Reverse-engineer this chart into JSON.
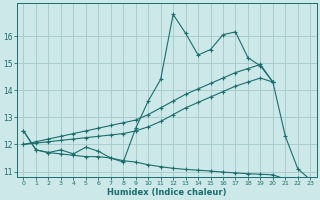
{
  "xlabel": "Humidex (Indice chaleur)",
  "bg_color": "#cce8e8",
  "grid_color": "#aacccc",
  "line_color": "#1a6e6e",
  "x": [
    0,
    1,
    2,
    3,
    4,
    5,
    6,
    7,
    8,
    9,
    10,
    11,
    12,
    13,
    14,
    15,
    16,
    17,
    18,
    19,
    20,
    21,
    22,
    23
  ],
  "y_top": [
    12.5,
    11.8,
    11.7,
    11.8,
    11.65,
    11.9,
    11.75,
    11.5,
    11.35,
    12.6,
    13.6,
    14.4,
    16.8,
    16.1,
    15.3,
    15.5,
    16.05,
    16.15,
    15.2,
    14.9,
    14.3,
    12.3,
    11.1,
    10.7
  ],
  "y_line1": [
    12.0,
    12.05,
    12.1,
    12.15,
    12.2,
    12.25,
    12.3,
    12.35,
    12.4,
    12.5,
    12.65,
    12.85,
    13.1,
    13.35,
    13.55,
    13.75,
    13.95,
    14.15,
    14.3,
    14.45,
    14.3,
    null,
    null,
    null
  ],
  "y_line2": [
    12.0,
    12.1,
    12.2,
    12.3,
    12.4,
    12.5,
    12.6,
    12.7,
    12.8,
    12.9,
    13.1,
    13.35,
    13.6,
    13.85,
    14.05,
    14.25,
    14.45,
    14.65,
    14.8,
    14.95,
    14.3,
    null,
    null,
    null
  ],
  "y_bot": [
    12.5,
    11.8,
    11.7,
    11.65,
    11.6,
    11.55,
    11.55,
    11.5,
    11.4,
    11.35,
    11.25,
    11.18,
    11.12,
    11.08,
    11.05,
    11.02,
    10.98,
    10.95,
    10.92,
    10.9,
    10.88,
    10.72,
    10.75,
    10.7
  ],
  "ylim": [
    10.8,
    17.2
  ],
  "xlim": [
    -0.5,
    23.5
  ],
  "yticks": [
    11,
    12,
    13,
    14,
    15,
    16
  ],
  "xticks": [
    0,
    1,
    2,
    3,
    4,
    5,
    6,
    7,
    8,
    9,
    10,
    11,
    12,
    13,
    14,
    15,
    16,
    17,
    18,
    19,
    20,
    21,
    22,
    23
  ]
}
